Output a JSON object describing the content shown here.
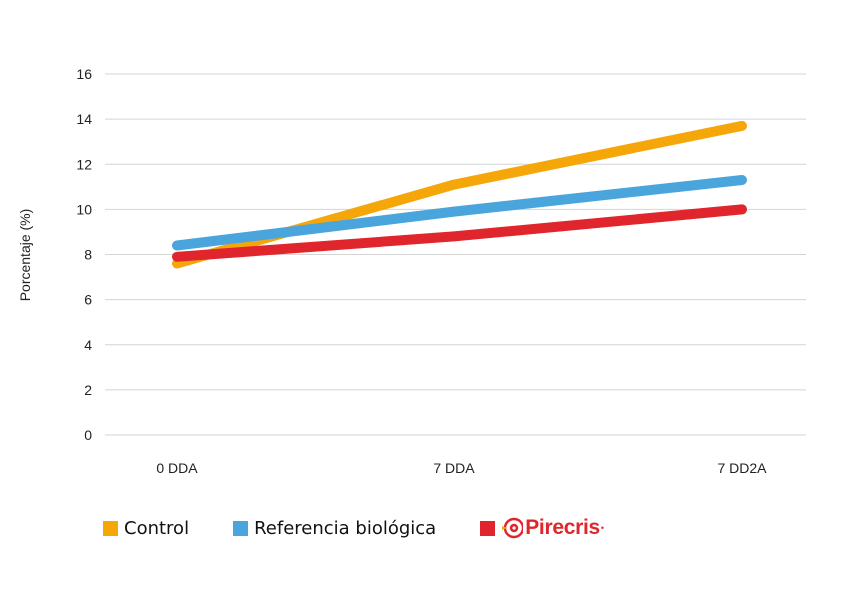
{
  "chart_data": {
    "type": "line",
    "categories": [
      "0 DDA",
      "7 DDA",
      "7 DD2A"
    ],
    "series": [
      {
        "name": "Control",
        "values": [
          7.6,
          11.1,
          13.7
        ],
        "color": "#f5a70a"
      },
      {
        "name": "Referencia biológica",
        "values": [
          8.4,
          9.9,
          11.3
        ],
        "color": "#4aa5dc"
      },
      {
        "name": "Pirecris",
        "values": [
          7.9,
          8.8,
          10.0
        ],
        "color": "#e0262c"
      }
    ],
    "ylabel": "Porcentaje (%)",
    "ylim": [
      0,
      16
    ],
    "yticks": [
      0,
      2,
      4,
      6,
      8,
      10,
      12,
      14,
      16
    ],
    "grid": true,
    "legend": "bottom-left"
  },
  "legend": {
    "items": [
      {
        "label": "Control",
        "color": "#f5a70a"
      },
      {
        "label": "Referencia biológica",
        "color": "#4aa5dc"
      }
    ],
    "brand_color": "#e0262c",
    "brand_text": "Pirecris",
    "brand_icon": "target-logo-icon"
  }
}
